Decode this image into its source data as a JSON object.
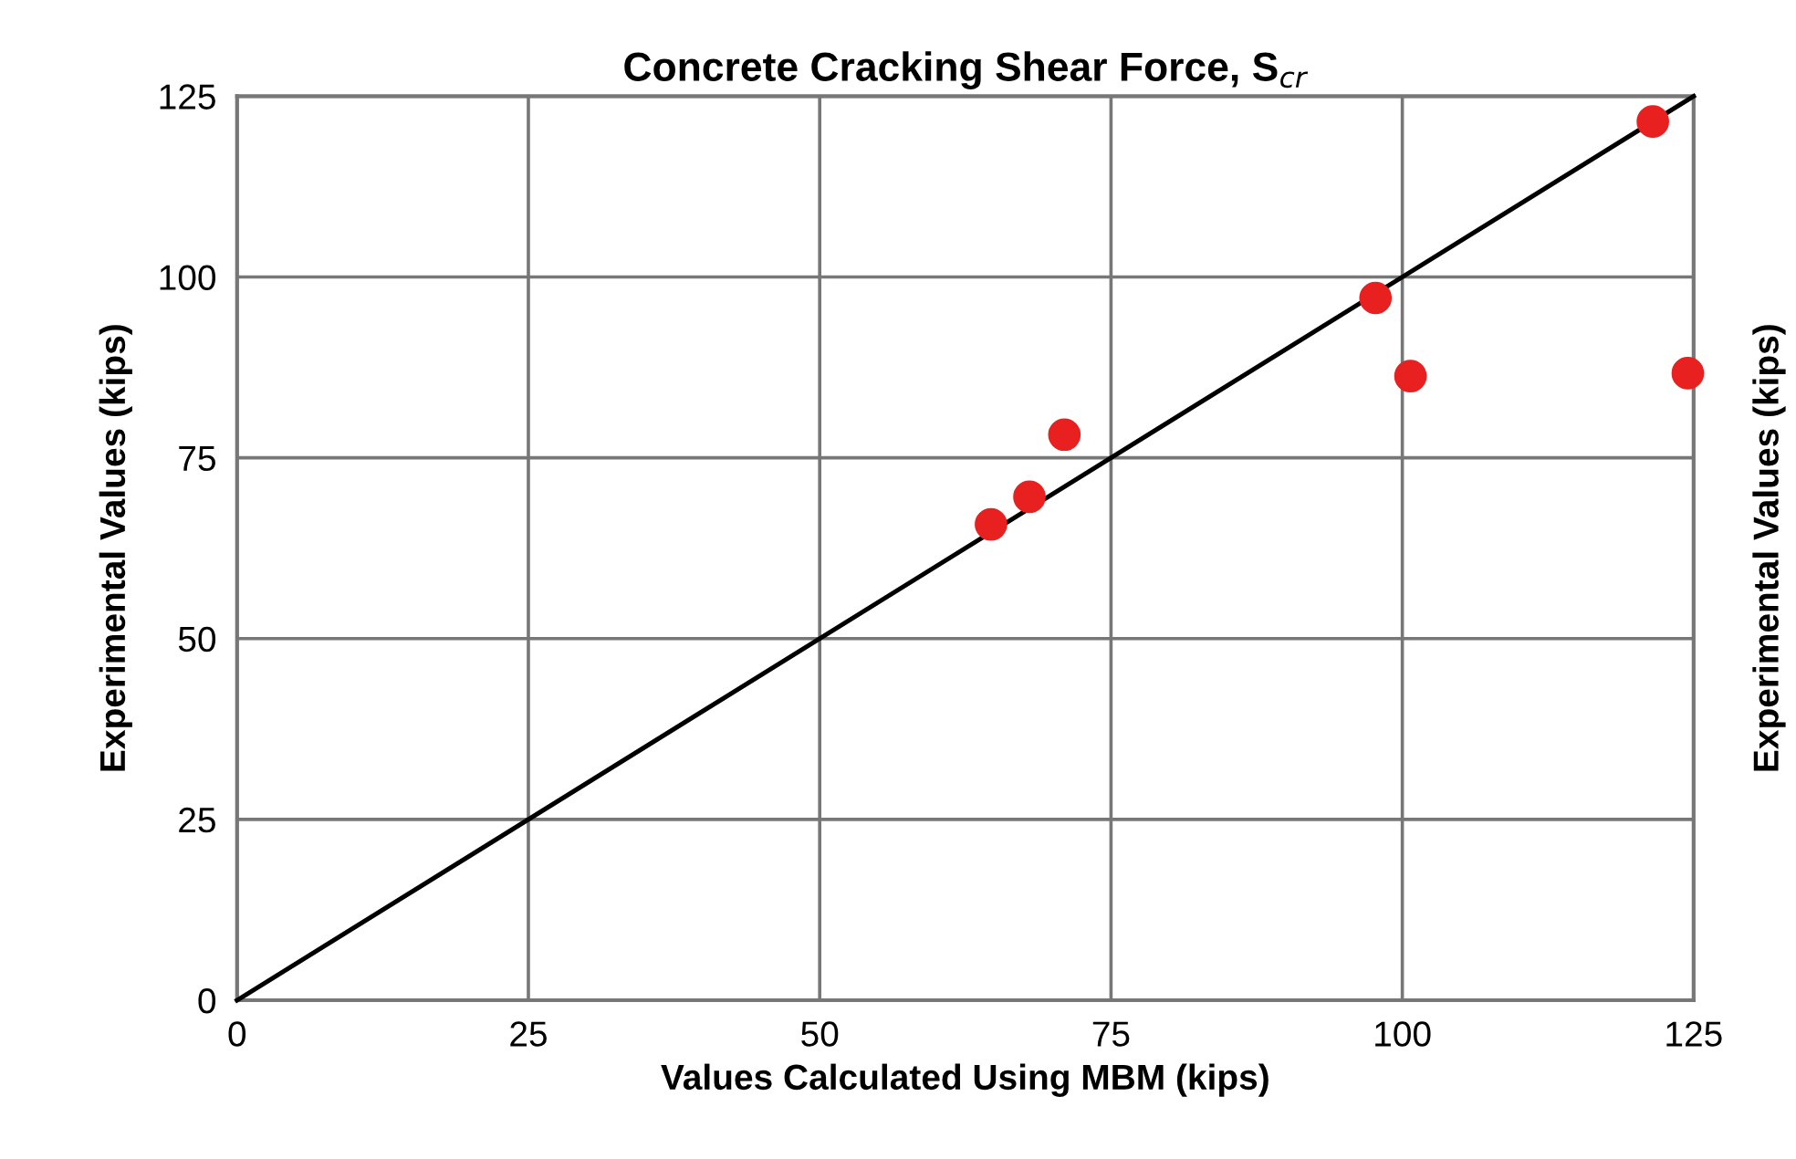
{
  "chart_data": {
    "type": "scatter",
    "title": "Concrete Cracking Shear Force, S$_{cr}$",
    "xlabel": "Values Calculated Using MBM (kips)",
    "ylabel": "Experimental Values (kips)",
    "y2label": "Experimental Values (kips)",
    "series": [
      {
        "type": "line",
        "color": "#000000",
        "x": [
          0,
          125
        ],
        "values": [
          0,
          125
        ],
        "marker": "none",
        "line_style": "solid"
      },
      {
        "color": "#e8201f",
        "x": [
          64.7,
          68.0,
          71.0,
          97.7,
          100.7,
          121.5,
          124.5
        ],
        "values": [
          65.8,
          69.6,
          78.2,
          97.1,
          86.3,
          121.5,
          86.7
        ],
        "marker": "circle"
      }
    ],
    "xlim": [
      0,
      125
    ],
    "ylim": [
      0,
      125
    ],
    "xticks": [
      0,
      25,
      50,
      75,
      100,
      125
    ],
    "yticks": [
      0,
      25,
      50,
      75,
      100,
      125
    ],
    "grid": true,
    "legend": false
  }
}
